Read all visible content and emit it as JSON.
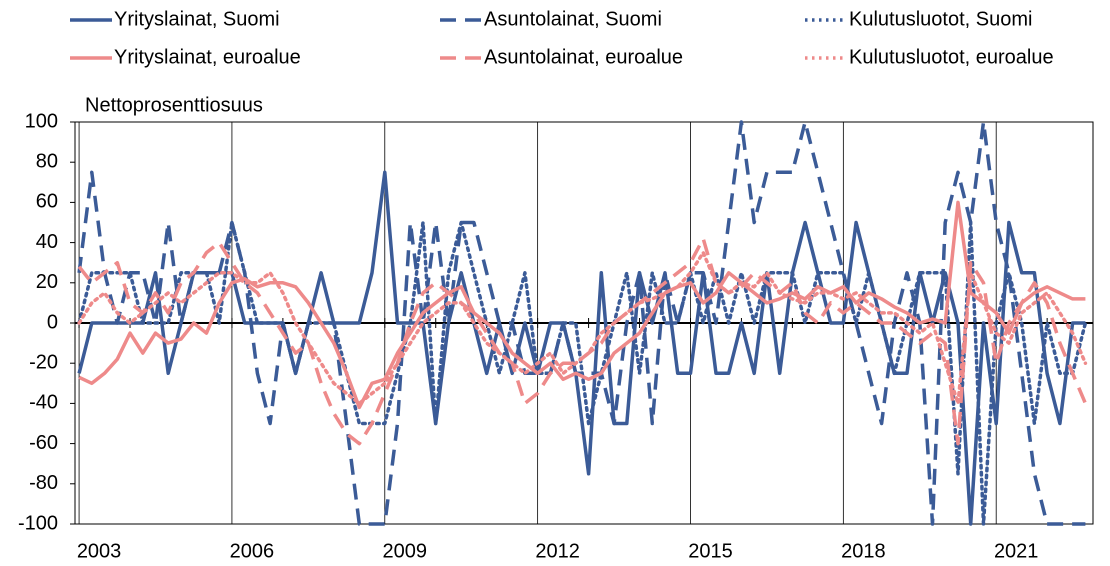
{
  "chart_data": {
    "type": "line",
    "y_label": "Nettoprosenttiosuus",
    "xlim": [
      2002.92,
      2022.9
    ],
    "xticks": [
      2003,
      2006,
      2009,
      2012,
      2015,
      2018,
      2021
    ],
    "ylim": [
      -100,
      100
    ],
    "yticks": [
      -100,
      -80,
      -60,
      -40,
      -20,
      0,
      20,
      40,
      60,
      80,
      100
    ],
    "grid": "x",
    "x": [
      2003,
      2003.25,
      2003.5,
      2003.75,
      2004,
      2004.25,
      2004.5,
      2004.75,
      2005,
      2005.25,
      2005.5,
      2005.75,
      2006,
      2006.25,
      2006.5,
      2006.75,
      2007,
      2007.25,
      2007.5,
      2007.75,
      2008,
      2008.25,
      2008.5,
      2008.75,
      2009,
      2009.25,
      2009.5,
      2009.75,
      2010,
      2010.25,
      2010.5,
      2010.75,
      2011,
      2011.25,
      2011.5,
      2011.75,
      2012,
      2012.25,
      2012.5,
      2012.75,
      2013,
      2013.25,
      2013.5,
      2013.75,
      2014,
      2014.25,
      2014.5,
      2014.75,
      2015,
      2015.25,
      2015.5,
      2015.75,
      2016,
      2016.25,
      2016.5,
      2016.75,
      2017,
      2017.25,
      2017.5,
      2017.75,
      2018,
      2018.25,
      2018.5,
      2018.75,
      2019,
      2019.25,
      2019.5,
      2019.75,
      2020,
      2020.25,
      2020.5,
      2020.75,
      2021,
      2021.25,
      2021.5,
      2021.75,
      2022,
      2022.25,
      2022.5,
      2022.75
    ],
    "series": [
      {
        "name": "Yrityslainat, Suomi",
        "color": "#3b5b97",
        "dash": "solid",
        "values": [
          -25,
          0,
          0,
          0,
          0,
          0,
          25,
          -25,
          0,
          25,
          25,
          25,
          25,
          0,
          0,
          0,
          0,
          -25,
          0,
          25,
          0,
          0,
          0,
          25,
          75,
          0,
          0,
          0,
          -50,
          0,
          25,
          0,
          -25,
          0,
          -25,
          0,
          -25,
          0,
          0,
          -25,
          -75,
          25,
          -50,
          -50,
          25,
          0,
          25,
          -25,
          -25,
          25,
          -25,
          -25,
          0,
          -25,
          25,
          -25,
          25,
          50,
          25,
          0,
          0,
          50,
          25,
          0,
          -25,
          -25,
          25,
          0,
          25,
          0,
          -100,
          0,
          -50,
          50,
          25,
          25,
          -25,
          -50,
          0,
          0
        ]
      },
      {
        "name": "Asuntolainat, Suomi",
        "color": "#3b5b97",
        "dash": "dashed",
        "values": [
          25,
          75,
          25,
          0,
          25,
          25,
          0,
          50,
          0,
          25,
          25,
          25,
          50,
          25,
          -25,
          -50,
          0,
          -25,
          0,
          0,
          0,
          -50,
          -100,
          -100,
          -100,
          -50,
          50,
          0,
          50,
          0,
          50,
          50,
          25,
          0,
          0,
          -25,
          -25,
          -25,
          0,
          -25,
          -25,
          -25,
          -50,
          0,
          25,
          -50,
          25,
          0,
          25,
          25,
          0,
          50,
          100,
          50,
          75,
          75,
          75,
          100,
          75,
          50,
          25,
          0,
          -25,
          -50,
          0,
          25,
          0,
          -100,
          50,
          75,
          50,
          100,
          50,
          25,
          -25,
          -75,
          -100,
          -100,
          -100,
          -100
        ]
      },
      {
        "name": "Kulutusluotot, Suomi",
        "color": "#3b5b97",
        "dash": "dotted",
        "values": [
          0,
          25,
          25,
          25,
          25,
          0,
          0,
          0,
          25,
          25,
          25,
          0,
          50,
          25,
          0,
          0,
          0,
          -25,
          0,
          0,
          0,
          -25,
          -50,
          -50,
          -50,
          -25,
          0,
          50,
          -50,
          25,
          50,
          25,
          0,
          -25,
          0,
          25,
          -25,
          -25,
          0,
          0,
          -50,
          -25,
          0,
          25,
          -25,
          25,
          0,
          0,
          25,
          0,
          25,
          0,
          25,
          0,
          25,
          25,
          25,
          0,
          25,
          25,
          25,
          0,
          25,
          0,
          -25,
          0,
          25,
          25,
          25,
          -75,
          50,
          -100,
          0,
          25,
          0,
          -50,
          0,
          -25,
          -25,
          0
        ]
      },
      {
        "name": "Yrityslainat, euroalue",
        "color": "#ee8a8a",
        "dash": "solid",
        "values": [
          -27,
          -30,
          -25,
          -18,
          -5,
          -15,
          -5,
          -10,
          -8,
          0,
          -5,
          10,
          20,
          22,
          18,
          20,
          20,
          18,
          10,
          0,
          -10,
          -25,
          -42,
          -30,
          -28,
          -15,
          -5,
          5,
          10,
          15,
          18,
          5,
          0,
          -5,
          -15,
          -20,
          -25,
          -20,
          -28,
          -25,
          -28,
          -25,
          -15,
          -10,
          -5,
          5,
          15,
          18,
          20,
          10,
          15,
          25,
          20,
          15,
          10,
          12,
          15,
          12,
          18,
          15,
          18,
          10,
          15,
          12,
          8,
          5,
          0,
          2,
          0,
          60,
          15,
          10,
          5,
          -5,
          10,
          15,
          18,
          15,
          12,
          12
        ]
      },
      {
        "name": "Asuntolainat, euroalue",
        "color": "#ee8a8a",
        "dash": "dashed",
        "values": [
          28,
          20,
          25,
          30,
          10,
          5,
          15,
          5,
          20,
          25,
          35,
          40,
          30,
          20,
          15,
          5,
          -5,
          -15,
          -10,
          -30,
          -45,
          -55,
          -60,
          -50,
          -35,
          -20,
          0,
          15,
          20,
          15,
          10,
          5,
          -5,
          -15,
          -20,
          -40,
          -35,
          -25,
          -20,
          -20,
          -15,
          -10,
          0,
          5,
          10,
          15,
          20,
          25,
          30,
          42,
          20,
          15,
          18,
          25,
          20,
          15,
          20,
          5,
          0,
          10,
          5,
          10,
          5,
          0,
          0,
          -5,
          -10,
          -5,
          -10,
          -60,
          30,
          20,
          -20,
          0,
          10,
          20,
          10,
          -10,
          -25,
          -40
        ]
      },
      {
        "name": "Kulutusluotot, euroalue",
        "color": "#ee8a8a",
        "dash": "dotted",
        "values": [
          0,
          10,
          15,
          5,
          0,
          5,
          10,
          15,
          10,
          15,
          20,
          25,
          25,
          20,
          20,
          25,
          15,
          0,
          -10,
          -20,
          -30,
          -35,
          -40,
          -35,
          -30,
          -20,
          -10,
          0,
          5,
          10,
          10,
          0,
          -10,
          -15,
          -20,
          -25,
          -20,
          -15,
          -25,
          -20,
          -15,
          -5,
          0,
          5,
          10,
          12,
          15,
          18,
          25,
          35,
          20,
          15,
          20,
          18,
          25,
          15,
          12,
          10,
          15,
          15,
          12,
          15,
          10,
          5,
          5,
          0,
          -5,
          0,
          -20,
          -40,
          25,
          10,
          -5,
          -10,
          5,
          10,
          15,
          5,
          -5,
          -20
        ]
      }
    ]
  }
}
